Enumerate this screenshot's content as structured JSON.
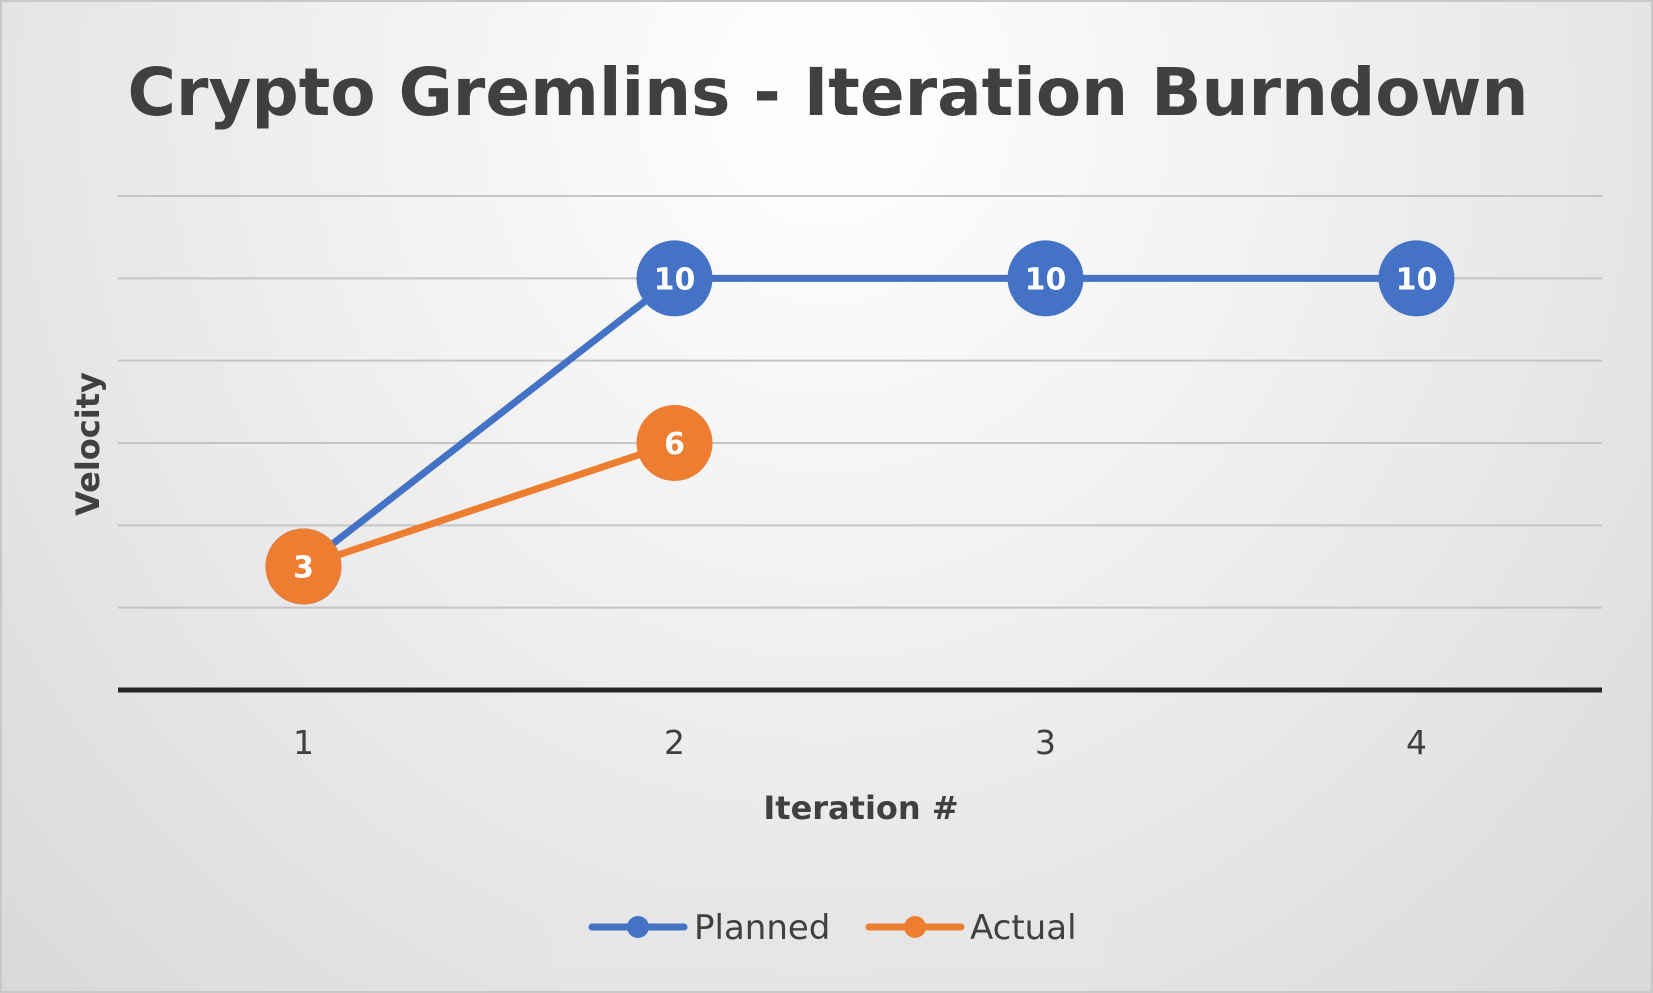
{
  "chart_data": {
    "type": "line",
    "title": "Crypto Gremlins - Iteration Burndown",
    "xlabel": "Iteration #",
    "ylabel": "Velocity",
    "categories": [
      "1",
      "2",
      "3",
      "4"
    ],
    "ylim": [
      0,
      12
    ],
    "grid": true,
    "legend_position": "bottom",
    "series": [
      {
        "name": "Planned",
        "color": "#4472C4",
        "values": [
          3,
          10,
          10,
          10
        ]
      },
      {
        "name": "Actual",
        "color": "#ED7D31",
        "values": [
          3,
          6,
          null,
          null
        ]
      }
    ]
  }
}
